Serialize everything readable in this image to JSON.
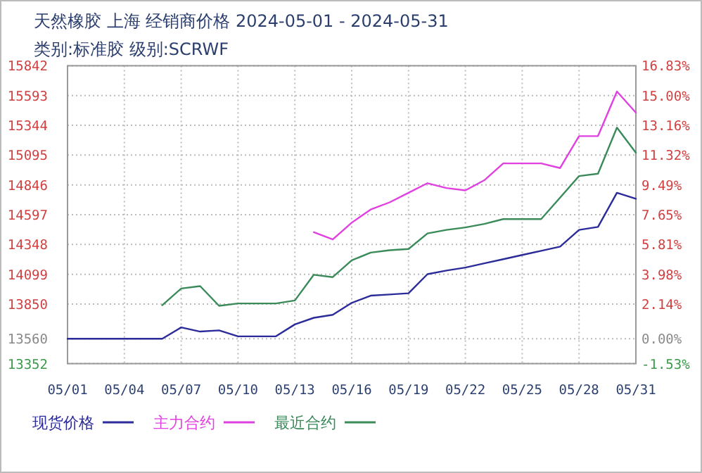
{
  "chart_data": {
    "type": "line",
    "title": "天然橡胶 上海 经销商价格 2024-05-01 - 2024-05-31",
    "subtitle": "类别:标准胶 级别:SCRWF",
    "categories": [
      "05/01",
      null,
      null,
      "05/04",
      null,
      null,
      "05/07",
      null,
      null,
      "05/10",
      null,
      null,
      "05/13",
      null,
      null,
      "05/16",
      null,
      null,
      "05/19",
      null,
      null,
      "05/22",
      null,
      null,
      "05/25",
      null,
      null,
      "05/28",
      null,
      null,
      "05/31"
    ],
    "series": [
      {
        "name": "现货价格",
        "color": "#2b2b9a",
        "values": [
          13560,
          13560,
          13560,
          13560,
          13560,
          13560,
          13655,
          13620,
          13630,
          13580,
          13580,
          13580,
          13680,
          13735,
          13760,
          13860,
          13920,
          13930,
          13940,
          14100,
          14130,
          14155,
          14190,
          14225,
          14260,
          14295,
          14330,
          14470,
          14495,
          14780,
          14730
        ]
      },
      {
        "name": "主力合约",
        "color": "#e040e0",
        "values": [
          null,
          null,
          null,
          null,
          null,
          null,
          null,
          null,
          null,
          null,
          null,
          null,
          null,
          14450,
          14390,
          14530,
          14640,
          14700,
          14780,
          14860,
          14820,
          14800,
          14885,
          15026,
          15026,
          15026,
          14987,
          15254,
          15254,
          15627,
          15450
        ]
      },
      {
        "name": "最近合约",
        "color": "#3a8a5a",
        "values": [
          null,
          null,
          null,
          null,
          null,
          13840,
          13980,
          14000,
          13835,
          13855,
          13855,
          13855,
          13880,
          14095,
          14075,
          14215,
          14280,
          14300,
          14310,
          14440,
          14470,
          14490,
          14520,
          14560,
          14560,
          14560,
          14740,
          14920,
          14940,
          15325,
          15115
        ]
      }
    ],
    "ylim": [
      13352,
      15842
    ],
    "yticks": [
      15842,
      15593,
      15344,
      15095,
      14846,
      14597,
      14348,
      14099,
      13850,
      13560,
      13352
    ],
    "y2lim": [
      -1.53,
      16.83
    ],
    "y2ticks": [
      {
        "value": 16.83,
        "label": "16.83%"
      },
      {
        "value": 15.0,
        "label": "15.00%"
      },
      {
        "value": 13.16,
        "label": "13.16%"
      },
      {
        "value": 11.32,
        "label": "11.32%"
      },
      {
        "value": 9.49,
        "label": "9.49%"
      },
      {
        "value": 7.65,
        "label": "7.65%"
      },
      {
        "value": 5.81,
        "label": "5.81%"
      },
      {
        "value": 3.98,
        "label": "3.98%"
      },
      {
        "value": 2.14,
        "label": "2.14%"
      },
      {
        "value": 0.0,
        "label": "0.00%"
      },
      {
        "value": -1.53,
        "label": "-1.53%"
      }
    ],
    "grid": true,
    "legend": "bottom"
  }
}
